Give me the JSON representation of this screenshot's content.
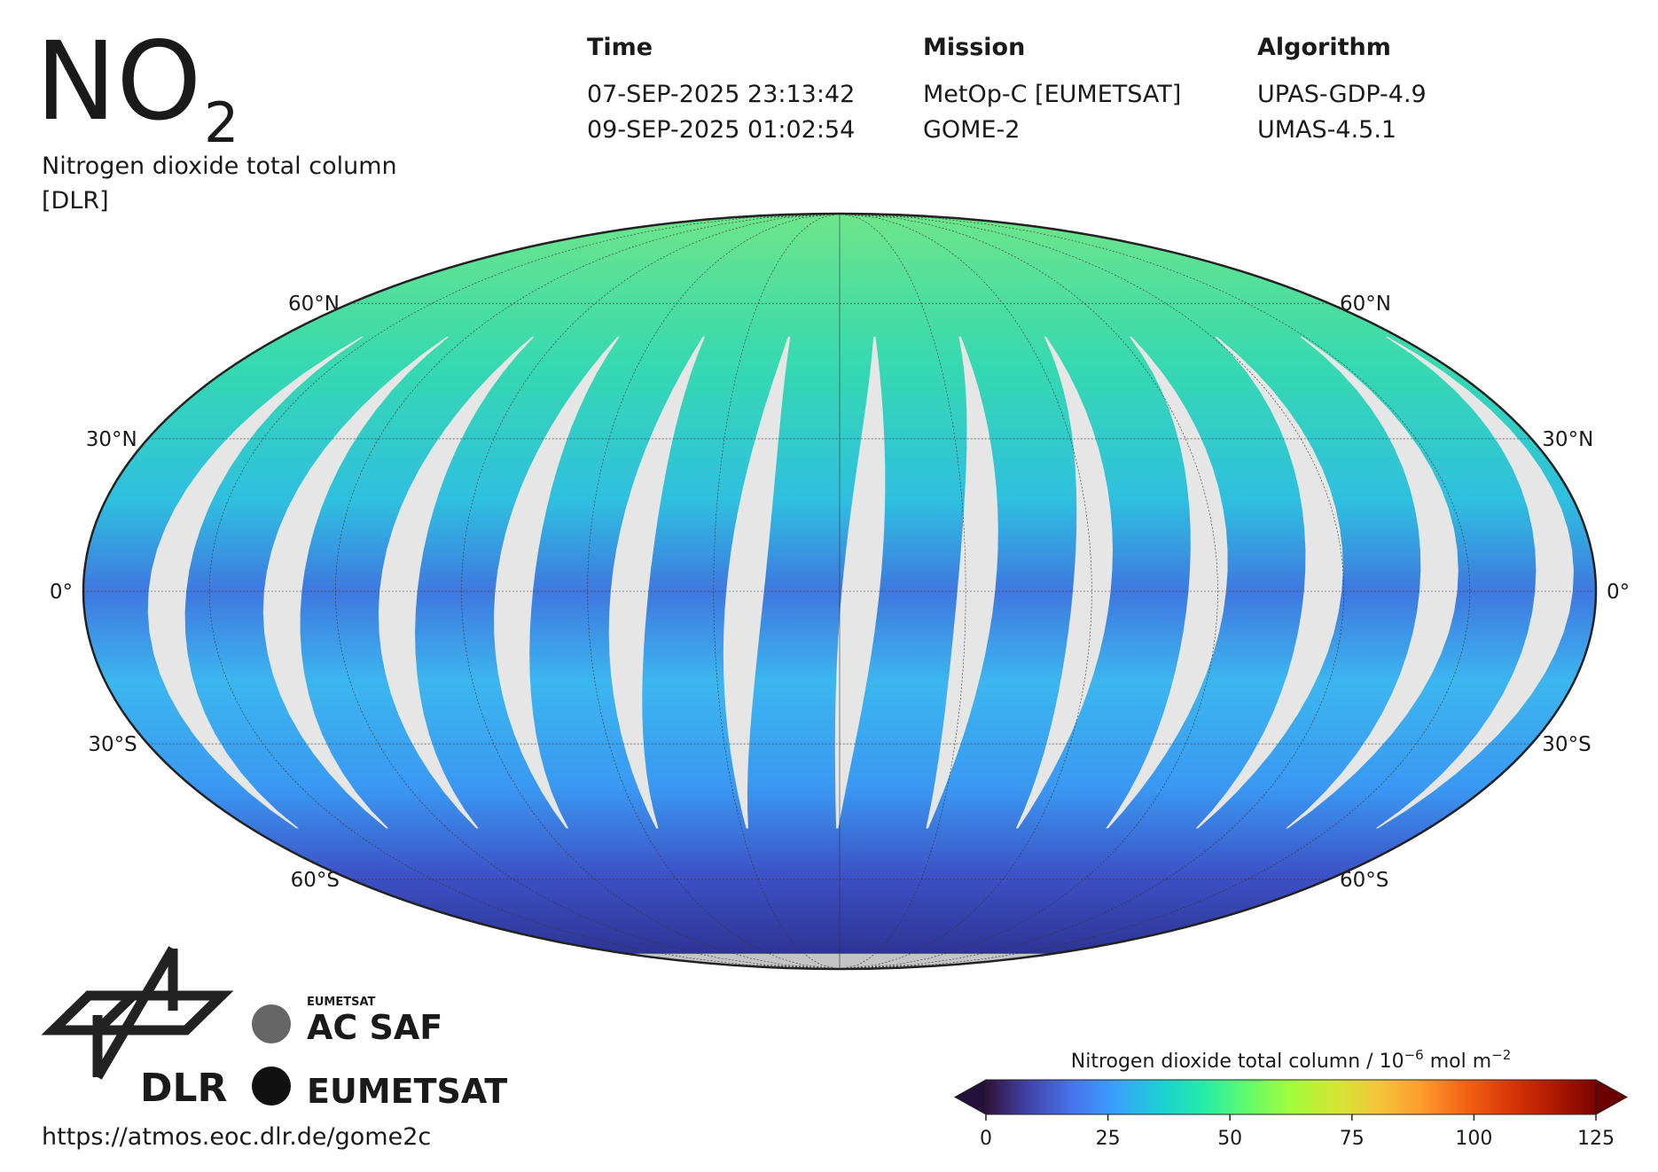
{
  "header": {
    "symbol": "NO",
    "subscript": "2",
    "subtitle_lines": [
      "Nitrogen dioxide total column",
      "[DLR]"
    ]
  },
  "meta": [
    {
      "heading": "Time",
      "lines": [
        "07-SEP-2025 23:13:42",
        "09-SEP-2025 01:02:54"
      ]
    },
    {
      "heading": "Mission",
      "lines": [
        "MetOp-C [EUMETSAT]",
        "GOME-2"
      ]
    },
    {
      "heading": "Algorithm",
      "lines": [
        "UPAS-GDP-4.9",
        "UMAS-4.5.1"
      ]
    }
  ],
  "map": {
    "projection": "mollweide",
    "parallels": [
      {
        "value": 60,
        "label": "60°N"
      },
      {
        "value": 30,
        "label": "30°N"
      },
      {
        "value": 0,
        "label": "0°"
      },
      {
        "value": -30,
        "label": "30°S"
      },
      {
        "value": -60,
        "label": "60°S"
      }
    ]
  },
  "colorbar": {
    "label_parts": [
      "Nitrogen dioxide total column / 10",
      "−6",
      " mol m",
      "−2"
    ],
    "lim": [
      0,
      125
    ],
    "ticks": [
      0,
      25,
      50,
      75,
      100,
      125
    ],
    "colormap": [
      "#30123b",
      "#4145ab",
      "#4675ed",
      "#39a2fc",
      "#1bcfd4",
      "#24eca6",
      "#61fc6c",
      "#a4fc3b",
      "#d1e834",
      "#f3c63a",
      "#fe9b2d",
      "#f36315",
      "#d93806",
      "#b11901",
      "#7a0402"
    ],
    "under_color": "#23103a",
    "over_color": "#6a0000"
  },
  "logos": {
    "dlr": "DLR",
    "acsaf_small": "EUMETSAT",
    "acsaf": "AC SAF",
    "eumetsat": "EUMETSAT"
  },
  "url": "https://atmos.eoc.dlr.de/gome2c"
}
